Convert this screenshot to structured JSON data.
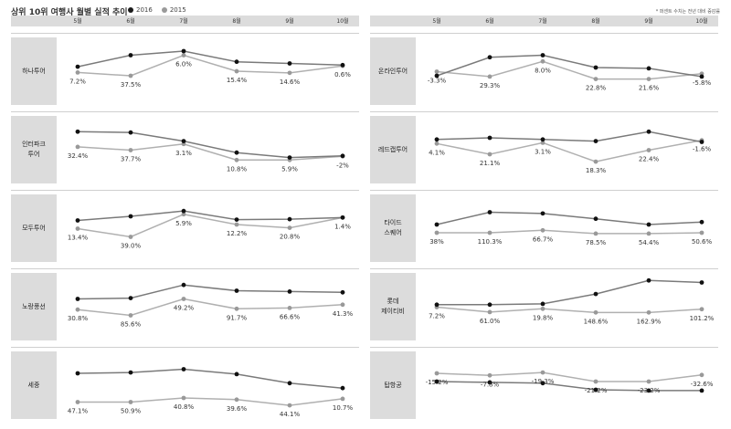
{
  "title": "상위 10위 여행사 월별 실적 추이",
  "legend": [
    {
      "label": "2016",
      "color": "#1a1a1a"
    },
    {
      "label": "2015",
      "color": "#9a9a9a"
    }
  ],
  "note": "* 퍼센트 수치는 전년 대비 증감률",
  "colors": {
    "line2016": "#7a7a7a",
    "line2015": "#b0b0b0",
    "dot2016": "#111111",
    "dot2015": "#999999"
  },
  "chart_data": {
    "type": "line",
    "categories": [
      "5월",
      "6월",
      "7월",
      "8월",
      "9월",
      "10월"
    ],
    "panels": [
      {
        "name": "하나투어",
        "series_2016": [
          52,
          80,
          90,
          64,
          60,
          56
        ],
        "series_2015": [
          38,
          30,
          80,
          41,
          37,
          54
        ],
        "labels": [
          "7.2%",
          "37.5%",
          "6.0%",
          "15.4%",
          "14.6%",
          "0.6%"
        ]
      },
      {
        "name": "인터파크\n투어",
        "series_2016": [
          85,
          83,
          62,
          34,
          22,
          26
        ],
        "series_2015": [
          48,
          40,
          55,
          16,
          16,
          25
        ],
        "labels": [
          "32.4%",
          "37.7%",
          "3.1%",
          "10.8%",
          "5.9%",
          "-2%"
        ]
      },
      {
        "name": "모두투어",
        "series_2016": [
          60,
          70,
          83,
          62,
          63,
          67
        ],
        "series_2015": [
          40,
          20,
          75,
          50,
          42,
          67
        ],
        "labels": [
          "13.4%",
          "39.0%",
          "5.9%",
          "12.2%",
          "20.8%",
          "1.4%"
        ]
      },
      {
        "name": "노랑풍선",
        "series_2016": [
          60,
          62,
          94,
          80,
          78,
          76
        ],
        "series_2015": [
          34,
          20,
          60,
          36,
          38,
          46
        ],
        "labels": [
          "30.8%",
          "85.6%",
          "49.2%",
          "91.7%",
          "66.6%",
          "41.3%"
        ]
      },
      {
        "name": "세중",
        "series_2016": [
          70,
          72,
          80,
          68,
          46,
          34
        ],
        "series_2015": [
          0,
          0,
          10,
          6,
          -8,
          8
        ],
        "labels": [
          "47.1%",
          "50.9%",
          "40.8%",
          "39.6%",
          "44.1%",
          "10.7%"
        ]
      },
      {
        "name": "온라인투어",
        "series_2016": [
          30,
          75,
          80,
          50,
          48,
          28
        ],
        "series_2015": [
          40,
          28,
          65,
          22,
          22,
          35
        ],
        "labels": [
          "-3.3%",
          "29.3%",
          "8.0%",
          "22.8%",
          "21.6%",
          "-5.8%"
        ]
      },
      {
        "name": "레드캡투어",
        "series_2016": [
          66,
          70,
          66,
          62,
          85,
          60
        ],
        "series_2015": [
          56,
          30,
          58,
          12,
          40,
          64
        ],
        "labels": [
          "4.1%",
          "21.1%",
          "3.1%",
          "18.3%",
          "22.4%",
          "-1.6%"
        ]
      },
      {
        "name": "타이드\n스퀘어",
        "series_2016": [
          50,
          80,
          77,
          64,
          50,
          56
        ],
        "series_2015": [
          30,
          30,
          36,
          28,
          28,
          30
        ],
        "labels": [
          "38%",
          "110.3%",
          "66.7%",
          "78.5%",
          "54.4%",
          "50.6%"
        ]
      },
      {
        "name": "롯데\n제이티비",
        "series_2016": [
          46,
          46,
          48,
          72,
          105,
          100
        ],
        "series_2015": [
          40,
          28,
          36,
          27,
          27,
          35
        ],
        "labels": [
          "7.2%",
          "61.0%",
          "19.8%",
          "148.6%",
          "162.9%",
          "101.2%"
        ]
      },
      {
        "name": "탑항공",
        "series_2016": [
          50,
          48,
          46,
          30,
          28,
          28
        ],
        "series_2015": [
          70,
          65,
          72,
          50,
          50,
          66
        ],
        "labels": [
          "-15.2%",
          "-7.8%",
          "-19.3%",
          "-21.2%",
          "-23.2%",
          "-32.6%"
        ]
      }
    ]
  }
}
